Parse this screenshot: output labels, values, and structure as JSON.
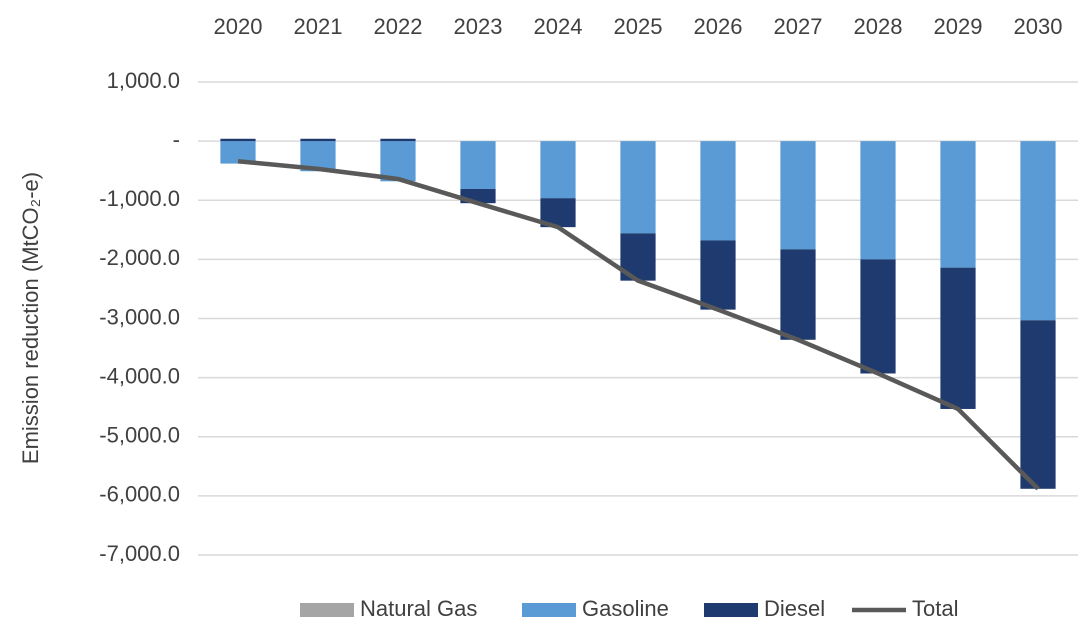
{
  "chart_data": {
    "type": "stacked_bar_line",
    "y_label": "Emission reduction (MtCO₂-e)",
    "categories": [
      "2020",
      "2021",
      "2022",
      "2023",
      "2024",
      "2025",
      "2026",
      "2027",
      "2028",
      "2029",
      "2030"
    ],
    "series": [
      {
        "name": "Natural Gas",
        "color": "#a5a5a5",
        "type": "bar",
        "values": [
          0,
          0,
          0,
          0,
          0,
          0,
          0,
          0,
          0,
          0,
          0
        ]
      },
      {
        "name": "Gasoline",
        "color": "#5b9bd5",
        "type": "bar",
        "values": [
          -380,
          -510,
          -680,
          -810,
          -965,
          -1560,
          -1680,
          -1830,
          -2000,
          -2140,
          -3030
        ]
      },
      {
        "name": "Diesel",
        "color": "#1f3a6e",
        "type": "bar",
        "values": [
          40,
          40,
          40,
          -240,
          -490,
          -800,
          -1170,
          -1530,
          -1930,
          -2390,
          -2850
        ]
      },
      {
        "name": "Total",
        "color": "#595959",
        "type": "line",
        "values": [
          -340,
          -470,
          -640,
          -1050,
          -1455,
          -2360,
          -2850,
          -3360,
          -3930,
          -4530,
          -5880
        ]
      }
    ],
    "ylim": [
      -7000,
      1000
    ],
    "yticks": [
      {
        "value": 1000,
        "label": "1,000.0"
      },
      {
        "value": 0,
        "label": "-"
      },
      {
        "value": -1000,
        "label": "-1,000.0"
      },
      {
        "value": -2000,
        "label": "-2,000.0"
      },
      {
        "value": -3000,
        "label": "-3,000.0"
      },
      {
        "value": -4000,
        "label": "-4,000.0"
      },
      {
        "value": -5000,
        "label": "-5,000.0"
      },
      {
        "value": -6000,
        "label": "-6,000.0"
      },
      {
        "value": -7000,
        "label": "-7,000.0"
      }
    ],
    "grid": true,
    "legend": "bottom"
  }
}
